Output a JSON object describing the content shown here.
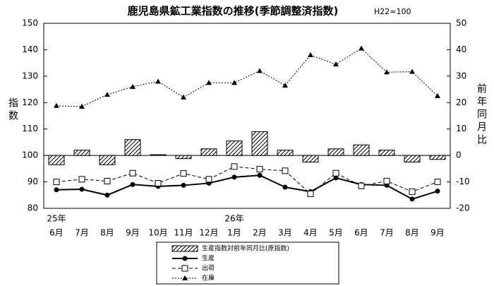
{
  "chart_data": {
    "type": "line",
    "title": "鹿児島県鉱工業指数の推移(季節調整済指数)",
    "subtitle": "H22=100",
    "y_label": "指数",
    "y2_label": "前年同月比",
    "categories": [
      "6月",
      "7月",
      "8月",
      "9月",
      "10月",
      "11月",
      "12月",
      "1月",
      "2月",
      "3月",
      "4月",
      "5月",
      "6月",
      "7月",
      "8月",
      "9月"
    ],
    "category_groups": [
      "25年",
      null,
      null,
      null,
      null,
      null,
      null,
      "26年",
      null,
      null,
      null,
      null,
      null,
      null,
      null,
      null
    ],
    "ylim": [
      80,
      150
    ],
    "yticks": [
      80,
      90,
      100,
      110,
      120,
      130,
      140,
      150
    ],
    "y2lim": [
      -20,
      50
    ],
    "y2ticks": [
      -20,
      -10,
      0,
      10,
      20,
      30,
      40,
      50
    ],
    "series": [
      {
        "name": "生産指数対前年同月比(原指数)",
        "type": "bar",
        "axis": "y2",
        "color": "#000000",
        "values": [
          -3.5,
          2,
          -3.5,
          6,
          0.3,
          -1.2,
          2.5,
          5.5,
          9,
          2,
          -2.5,
          2.5,
          4,
          2,
          -2.5,
          -1.5
        ]
      },
      {
        "name": "生産",
        "type": "line",
        "marker": "circle",
        "dash": "solid",
        "color": "#000000",
        "values": [
          87,
          87.2,
          85,
          89,
          88.3,
          88.7,
          89.5,
          91.8,
          92.5,
          88,
          86.3,
          91.5,
          89,
          88.7,
          83.5,
          86.5
        ]
      },
      {
        "name": "出荷",
        "type": "line",
        "marker": "square",
        "dash": "dashed",
        "color": "#000000",
        "values": [
          90,
          91,
          90.3,
          93.3,
          89.5,
          93.2,
          91,
          95.8,
          94.8,
          94.2,
          85.5,
          93.3,
          88.5,
          90.3,
          86.3,
          90
        ]
      },
      {
        "name": "在庫",
        "type": "line",
        "marker": "triangle",
        "dash": "dotted",
        "color": "#000000",
        "values": [
          118.8,
          118.5,
          123,
          126,
          128,
          122,
          127.5,
          127.5,
          132,
          126.5,
          138,
          134.5,
          140.5,
          131.5,
          131.7,
          122.5
        ]
      }
    ]
  }
}
